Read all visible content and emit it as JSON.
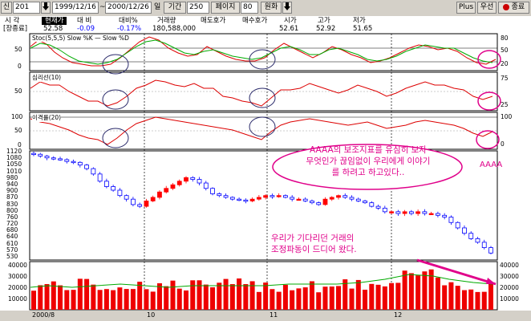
{
  "toolbar": {
    "code": "201",
    "start_date": "1999/12/16",
    "separator": "~",
    "end_date": "2000/12/26",
    "period_unit": "일",
    "period_label": "기간",
    "period_value": "250",
    "page_label": "페이지",
    "page_value": "80",
    "currency": "원화",
    "plus_label": "Plus",
    "order_label": "우선",
    "close_label": "종료",
    "code_prefix": "신"
  },
  "quote_header": {
    "labels": [
      "시 각",
      "현재가",
      "대 비",
      "대비%",
      "거래량",
      "매도호가",
      "매수호가",
      "시가",
      "고가",
      "저가"
    ],
    "tag": "[장종료]",
    "values": [
      "52.58",
      "-0.09",
      "-0.17%",
      "180,588,000",
      "",
      "",
      "52.61",
      "52.92",
      "51.65"
    ]
  },
  "panels": {
    "stoch_label": "Stoc(5,5,5) Slow %K — Slow %D",
    "stoch_ticks": [
      "80",
      "50",
      "20"
    ],
    "stoch_left_ticks": [
      "50",
      "0"
    ],
    "osc_label": "심리선(10)",
    "osc_ticks": [
      "75",
      "25"
    ],
    "osc_left_ticks": [
      "50"
    ],
    "disp_label": "이격률(20)",
    "disp_ticks": [
      "100",
      "0"
    ],
    "disp_left_ticks": [
      "100",
      "50",
      "0"
    ]
  },
  "price": {
    "left_ticks": [
      "1120",
      "1080",
      "1050",
      "1010",
      "980",
      "940",
      "900",
      "870",
      "830",
      "800",
      "760",
      "720",
      "680",
      "640",
      "610",
      "570",
      "530"
    ]
  },
  "volume": {
    "left_ticks": [
      "40000",
      "30000",
      "20000",
      "10000"
    ],
    "right_ticks": [
      "40000",
      "30000",
      "20000",
      "10000"
    ]
  },
  "dates": [
    "2000/8",
    "10",
    "11",
    "12"
  ],
  "annotations": {
    "bubble_line1": "AAAA의 보조지표를 유심히 보자",
    "bubble_line2": "무엇인가 끊임없이 우리에게 이야기",
    "bubble_line3": "를 하려고 하고있다..",
    "aaaa": "AAAA",
    "note_line1": "우리가 기다리던 거래의",
    "note_line2": "조정파동이 드디어 왔다."
  },
  "colors": {
    "up": "#ff0000",
    "down": "#0000ff",
    "annot": "#e0008a",
    "circle": "#2a2a6a",
    "green": "#00aa00"
  },
  "chart_data": {
    "type": "bar",
    "title": "",
    "categories": [
      "2000/8",
      "10",
      "11",
      "12"
    ],
    "price_range": [
      530,
      1120
    ],
    "volume_range": [
      0,
      40000
    ],
    "closes": [
      1110,
      1100,
      1090,
      1085,
      1080,
      1070,
      1065,
      1050,
      1030,
      1000,
      960,
      930,
      910,
      880,
      860,
      830,
      820,
      850,
      870,
      900,
      920,
      940,
      960,
      980,
      970,
      950,
      920,
      890,
      880,
      870,
      860,
      855,
      850,
      860,
      870,
      880,
      875,
      880,
      870,
      860,
      860,
      850,
      840,
      830,
      860,
      870,
      880,
      870,
      860,
      850,
      840,
      820,
      810,
      790,
      790,
      780,
      790,
      780,
      790,
      780,
      780,
      770,
      760,
      730,
      700,
      670,
      640,
      620,
      590,
      560
    ]
  }
}
